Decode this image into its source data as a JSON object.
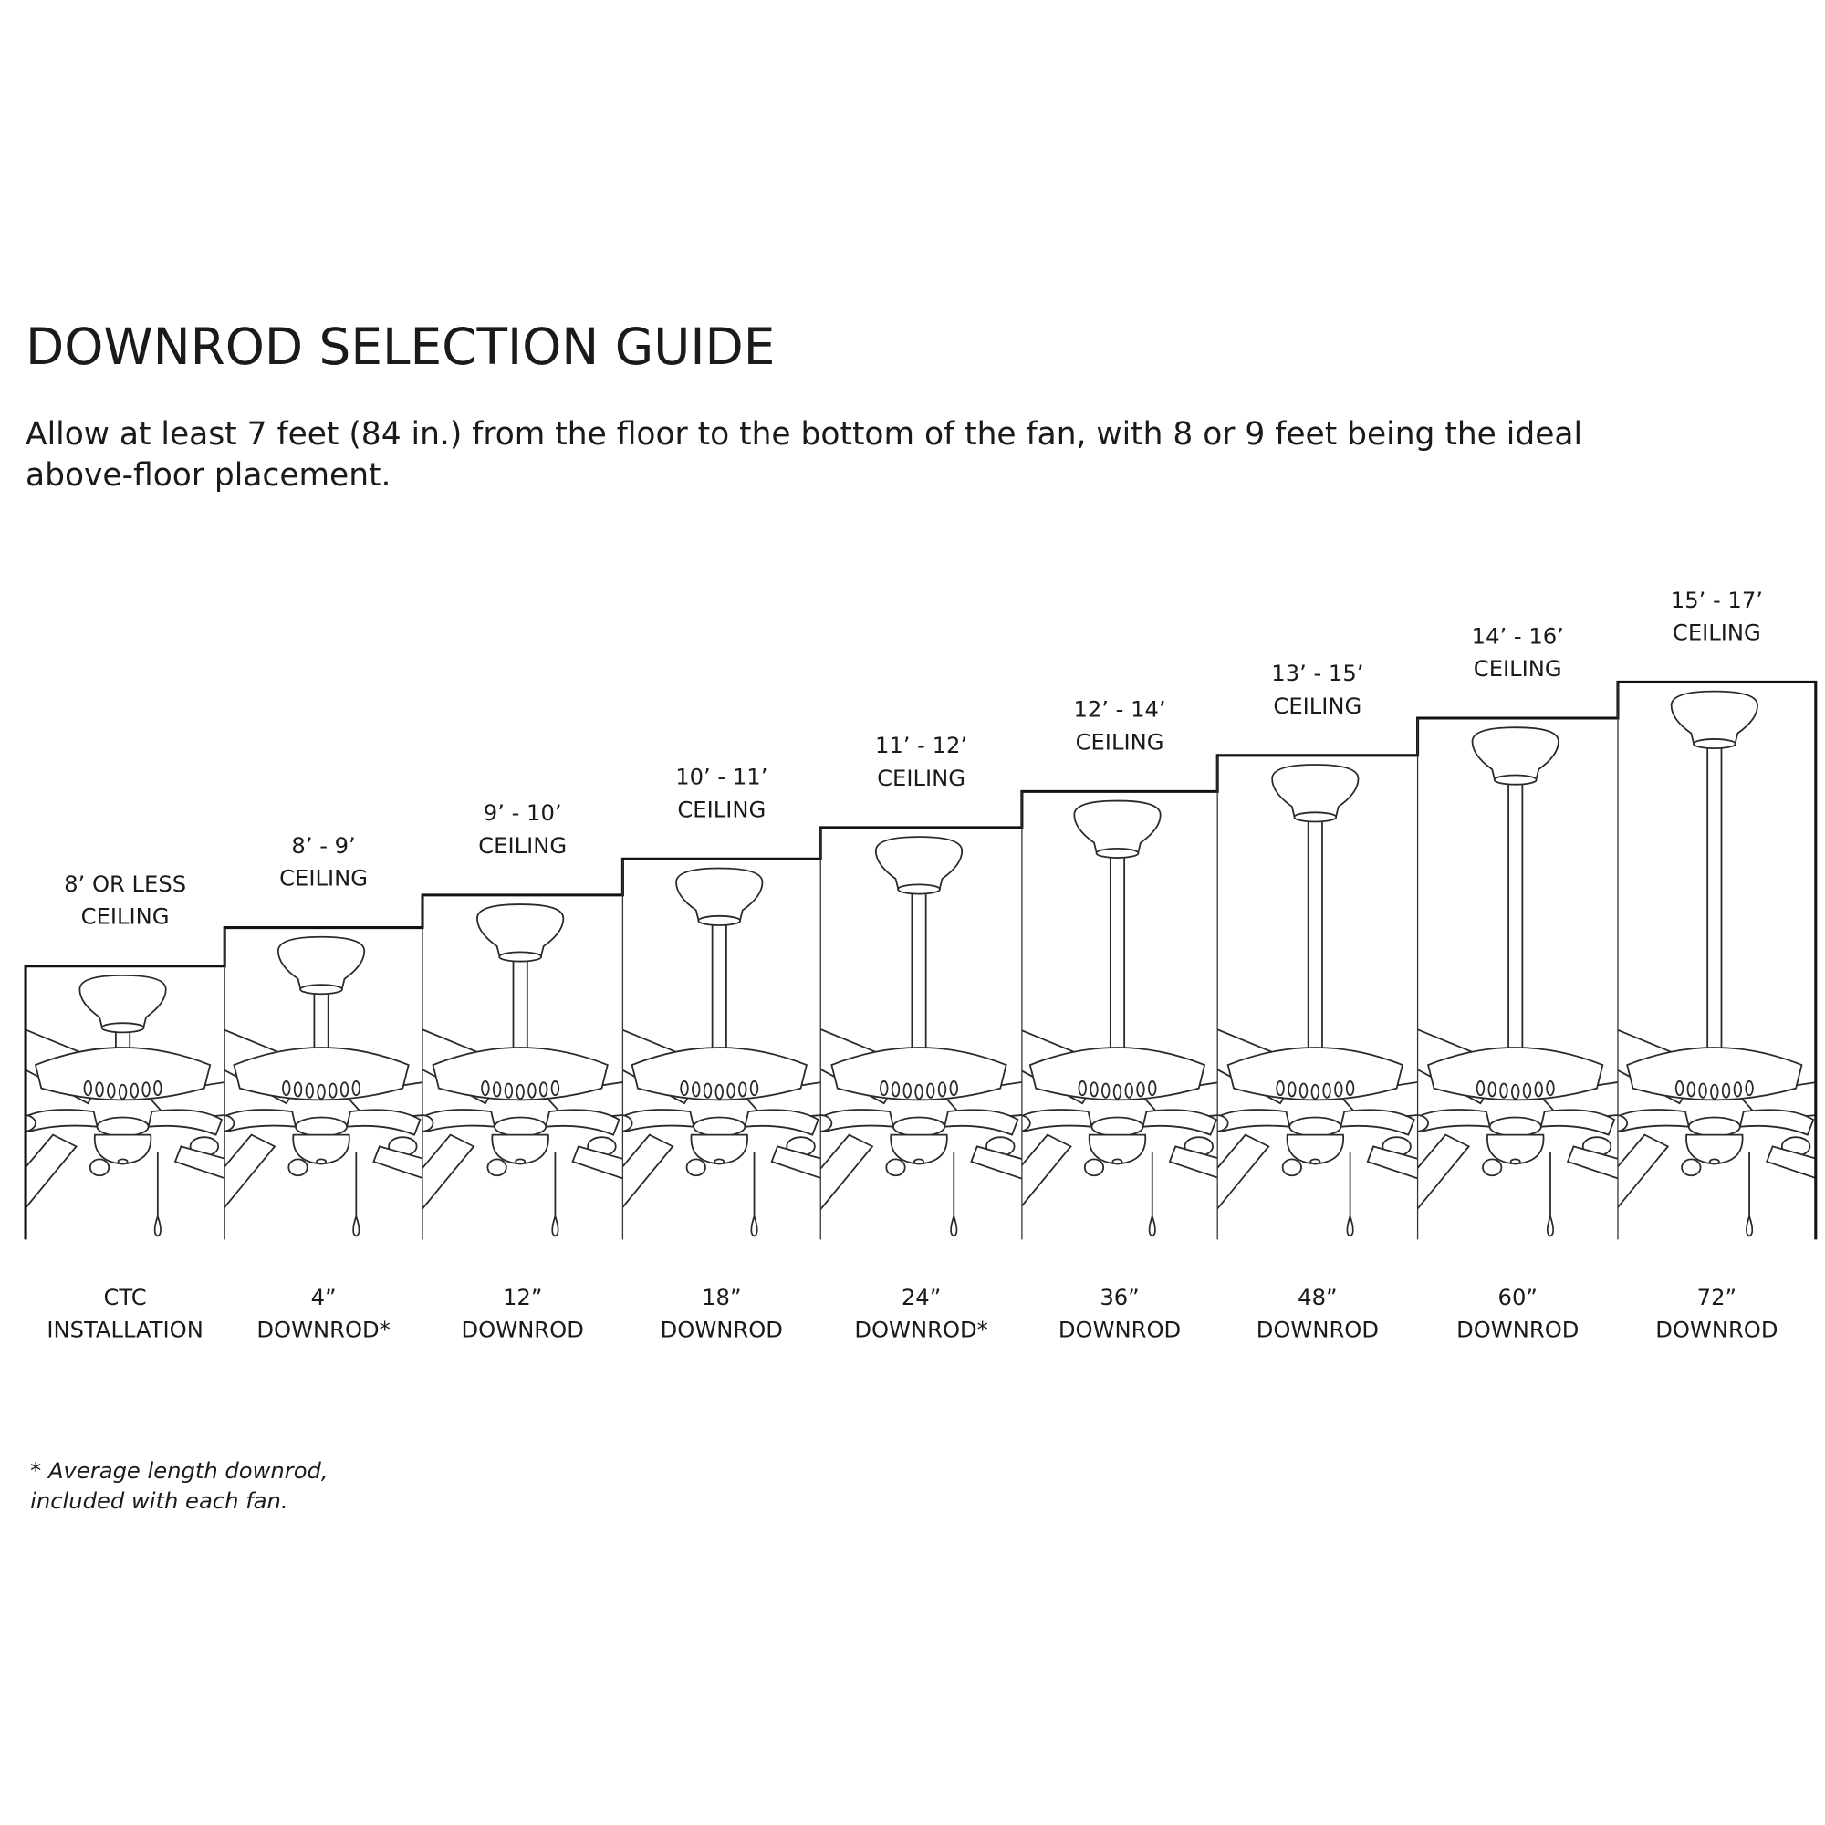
{
  "header": {
    "title": "DOWNROD SELECTION GUIDE",
    "subtitle": [
      "Allow at least 7 feet (84 in.) from the floor to the bottom of the fan, with 8 or 9 feet being the ideal",
      "above-floor placement."
    ]
  },
  "columns": [
    {
      "ceiling": [
        "8’ OR LESS",
        "CEILING"
      ],
      "downrod": [
        "CTC",
        "INSTALLATION"
      ]
    },
    {
      "ceiling": [
        "8’ - 9’",
        "CEILING"
      ],
      "downrod": [
        "4”",
        "DOWNROD*"
      ]
    },
    {
      "ceiling": [
        "9’ - 10’",
        "CEILING"
      ],
      "downrod": [
        "12”",
        "DOWNROD"
      ]
    },
    {
      "ceiling": [
        "10’ - 11’",
        "CEILING"
      ],
      "downrod": [
        "18”",
        "DOWNROD"
      ]
    },
    {
      "ceiling": [
        "11’ - 12’",
        "CEILING"
      ],
      "downrod": [
        "24”",
        "DOWNROD*"
      ]
    },
    {
      "ceiling": [
        "12’ - 14’",
        "CEILING"
      ],
      "downrod": [
        "36”",
        "DOWNROD"
      ]
    },
    {
      "ceiling": [
        "13’ - 15’",
        "CEILING"
      ],
      "downrod": [
        "48”",
        "DOWNROD"
      ]
    },
    {
      "ceiling": [
        "14’ - 16’",
        "CEILING"
      ],
      "downrod": [
        "60”",
        "DOWNROD"
      ]
    },
    {
      "ceiling": [
        "15’ - 17’",
        "CEILING"
      ],
      "downrod": [
        "72”",
        "DOWNROD"
      ]
    }
  ],
  "footnote": [
    "* Average length downrod,",
    " included with each fan."
  ]
}
